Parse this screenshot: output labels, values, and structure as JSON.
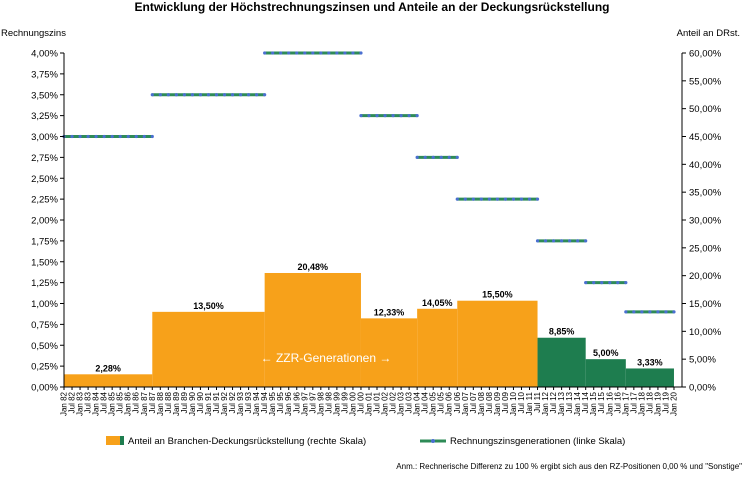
{
  "chart_data": {
    "type": "bar",
    "title": "Entwicklung der Höchstrechnungszinsen und Anteile an der Deckungsrückstellung",
    "ylabel_left": "Rechnungszins",
    "ylabel_right": "Anteil an DRst.",
    "ylim_left": [
      0,
      4.0
    ],
    "ylim_right": [
      0,
      60
    ],
    "yticks_left": [
      "0,00%",
      "0,25%",
      "0,50%",
      "0,75%",
      "1,00%",
      "1,25%",
      "1,50%",
      "1,75%",
      "2,00%",
      "2,25%",
      "2,50%",
      "2,75%",
      "3,00%",
      "3,25%",
      "3,50%",
      "3,75%",
      "4,00%"
    ],
    "yticks_right": [
      "0,00%",
      "5,00%",
      "10,00%",
      "15,00%",
      "20,00%",
      "25,00%",
      "30,00%",
      "35,00%",
      "40,00%",
      "45,00%",
      "50,00%",
      "55,00%",
      "60,00%"
    ],
    "x_labels": [
      "Jan 82",
      "Jul 82",
      "Jan 83",
      "Jul 83",
      "Jan 84",
      "Jul 84",
      "Jan 85",
      "Jul 85",
      "Jan 86",
      "Jul 86",
      "Jan 87",
      "Jul 87",
      "Jan 88",
      "Jul 88",
      "Jan 89",
      "Jul 89",
      "Jan 90",
      "Jul 90",
      "Jan 91",
      "Jul 91",
      "Jan 92",
      "Jul 92",
      "Jan 93",
      "Jul 93",
      "Jan 94",
      "Jul 94",
      "Jan 95",
      "Jul 95",
      "Jan 96",
      "Jul 96",
      "Jan 97",
      "Jul 97",
      "Jan 98",
      "Jul 98",
      "Jan 99",
      "Jul 99",
      "Jan 00",
      "Jul 00",
      "Jan 01",
      "Jul 01",
      "Jan 02",
      "Jul 02",
      "Jan 03",
      "Jul 03",
      "Jan 04",
      "Jul 04",
      "Jan 05",
      "Jul 05",
      "Jan 06",
      "Jul 06",
      "Jan 07",
      "Jul 07",
      "Jan 08",
      "Jul 08",
      "Jan 09",
      "Jul 09",
      "Jan 10",
      "Jul 10",
      "Jan 11",
      "Jul 11",
      "Jan 12",
      "Jul 12",
      "Jan 13",
      "Jul 13",
      "Jan 14",
      "Jul 14",
      "Jan 15",
      "Jul 15",
      "Jan 16",
      "Jul 16",
      "Jan 17",
      "Jul 17",
      "Jan 18",
      "Jul 18",
      "Jan 19",
      "Jul 19",
      "Jan 20"
    ],
    "bars": [
      {
        "start": "Jan 82",
        "end": "Jul 87",
        "value": 2.28,
        "label": "2,28%",
        "color": "#f7a11a"
      },
      {
        "start": "Jul 87",
        "end": "Jul 94",
        "value": 13.5,
        "label": "13,50%",
        "color": "#f7a11a"
      },
      {
        "start": "Jul 94",
        "end": "Jul 00",
        "value": 20.48,
        "label": "20,48%",
        "color": "#f7a11a"
      },
      {
        "start": "Jul 00",
        "end": "Jan 04",
        "value": 12.33,
        "label": "12,33%",
        "color": "#f7a11a"
      },
      {
        "start": "Jan 04",
        "end": "Jul 06",
        "value": 14.05,
        "label": "14,05%",
        "color": "#f7a11a"
      },
      {
        "start": "Jul 06",
        "end": "Jul 11",
        "value": 15.5,
        "label": "15,50%",
        "color": "#f7a11a"
      },
      {
        "start": "Jul 11",
        "end": "Jul 14",
        "value": 8.85,
        "label": "8,85%",
        "color": "#1e7d4f"
      },
      {
        "start": "Jul 14",
        "end": "Jan 17",
        "value": 5.0,
        "label": "5,00%",
        "color": "#1e7d4f"
      },
      {
        "start": "Jan 17",
        "end": "Jan 20",
        "value": 3.33,
        "label": "3,33%",
        "color": "#1e7d4f"
      }
    ],
    "rate_series": [
      {
        "start": "Jan 82",
        "end": "Jul 87",
        "rate": 3.0
      },
      {
        "start": "Jul 87",
        "end": "Jul 94",
        "rate": 3.5
      },
      {
        "start": "Jul 94",
        "end": "Jul 00",
        "rate": 4.0
      },
      {
        "start": "Jul 00",
        "end": "Jan 04",
        "rate": 3.25
      },
      {
        "start": "Jan 04",
        "end": "Jul 06",
        "rate": 2.75
      },
      {
        "start": "Jul 06",
        "end": "Jul 11",
        "rate": 2.25
      },
      {
        "start": "Jul 11",
        "end": "Jul 14",
        "rate": 1.75
      },
      {
        "start": "Jul 14",
        "end": "Jan 17",
        "rate": 1.25
      },
      {
        "start": "Jan 17",
        "end": "Jan 20",
        "rate": 0.9
      }
    ],
    "annotation": "← ZZR-Generationen →",
    "legend": [
      {
        "name": "Anteil an Branchen-Deckungsrückstellung (rechte Skala)",
        "color": "#f7a11a",
        "color2": "#1e7d4f",
        "kind": "bar"
      },
      {
        "name": "Rechnungszinsgenerationen (linke Skala)",
        "color": "#2e8b57",
        "marker": "#4a6fd1",
        "kind": "line"
      }
    ],
    "legend_position": "bottom",
    "footnote": "Anm.: Rechnerische Differenz zu 100 % ergibt sich aus den RZ-Positionen 0,00 % und \"Sonstige\"",
    "grid": false
  }
}
